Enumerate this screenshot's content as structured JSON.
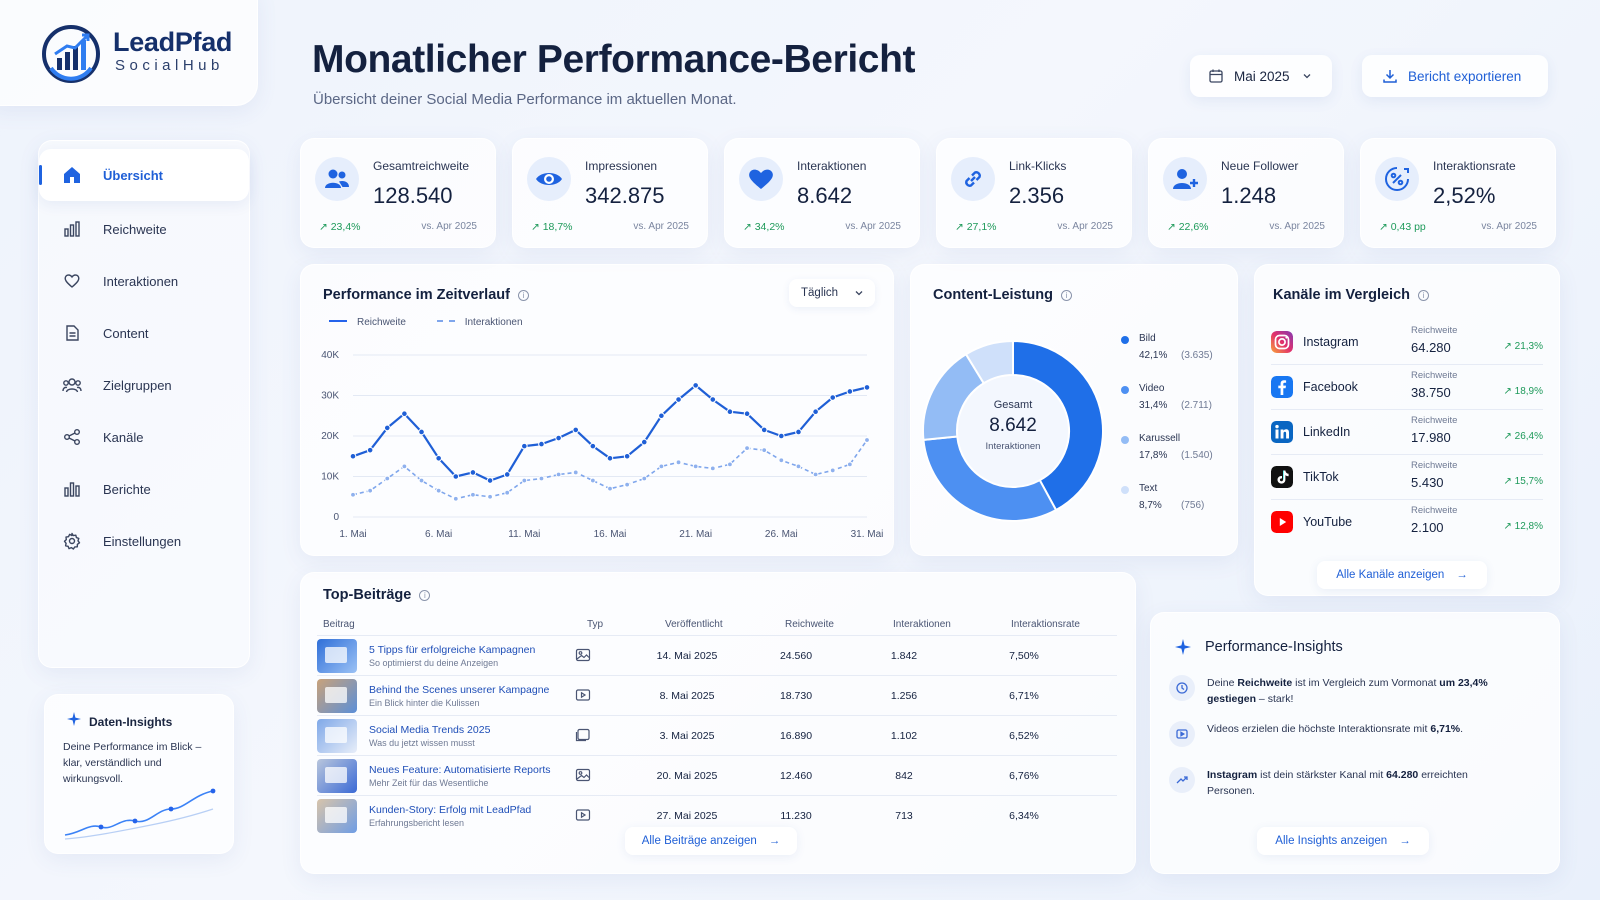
{
  "brand": {
    "name": "LeadPfad",
    "sub": "SocialHub"
  },
  "nav": [
    {
      "label": "Übersicht",
      "icon": "home-icon",
      "active": true
    },
    {
      "label": "Reichweite",
      "icon": "bar-chart-icon"
    },
    {
      "label": "Interaktionen",
      "icon": "heart-icon"
    },
    {
      "label": "Content",
      "icon": "document-icon"
    },
    {
      "label": "Zielgruppen",
      "icon": "users-icon"
    },
    {
      "label": "Kanäle",
      "icon": "share-icon"
    },
    {
      "label": "Berichte",
      "icon": "report-icon"
    },
    {
      "label": "Einstellungen",
      "icon": "gear-icon"
    }
  ],
  "data_insights": {
    "title": "Daten-Insights",
    "text": "Deine Performance im Blick – klar, verständlich und wirkungsvoll."
  },
  "header": {
    "title": "Monatlicher Performance-Bericht",
    "subtitle": "Übersicht deiner Social Media Performance im aktuellen Monat.",
    "month": "Mai 2025",
    "export": "Bericht exportieren"
  },
  "kpis": [
    {
      "label": "Gesamtreichweite",
      "value": "128.540",
      "change": "23,4%",
      "vs": "vs. Apr 2025",
      "icon": "users-icon"
    },
    {
      "label": "Impressionen",
      "value": "342.875",
      "change": "18,7%",
      "vs": "vs. Apr 2025",
      "icon": "eye-icon"
    },
    {
      "label": "Interaktionen",
      "value": "8.642",
      "change": "34,2%",
      "vs": "vs. Apr 2025",
      "icon": "heart-icon"
    },
    {
      "label": "Link-Klicks",
      "value": "2.356",
      "change": "27,1%",
      "vs": "vs. Apr 2025",
      "icon": "link-icon"
    },
    {
      "label": "Neue Follower",
      "value": "1.248",
      "change": "22,6%",
      "vs": "vs. Apr 2025",
      "icon": "user-plus-icon"
    },
    {
      "label": "Interaktionsrate",
      "value": "2,52%",
      "change": "0,43 pp",
      "vs": "vs. Apr 2025",
      "icon": "percent-icon"
    }
  ],
  "performance": {
    "title": "Performance im Zeitverlauf",
    "interval": "Täglich"
  },
  "chart_data": [
    {
      "type": "line",
      "title": "Performance im Zeitverlauf",
      "x": [
        1,
        2,
        3,
        4,
        5,
        6,
        7,
        8,
        9,
        10,
        11,
        12,
        13,
        14,
        15,
        16,
        17,
        18,
        19,
        20,
        21,
        22,
        23,
        24,
        25,
        26,
        27,
        28,
        29,
        30,
        31
      ],
      "xticks": [
        "1. Mai",
        "6. Mai",
        "11. Mai",
        "16. Mai",
        "21. Mai",
        "26. Mai",
        "31. Mai"
      ],
      "yticks": [
        "0",
        "10K",
        "20K",
        "30K",
        "40K"
      ],
      "ylim": [
        0,
        40000
      ],
      "series": [
        {
          "name": "Reichweite",
          "values": [
            15000,
            16500,
            22000,
            25500,
            21000,
            14500,
            10000,
            11000,
            9000,
            10500,
            17500,
            18000,
            19500,
            21500,
            17500,
            14500,
            15000,
            18500,
            25000,
            29000,
            32500,
            29000,
            26000,
            25500,
            21500,
            20000,
            21000,
            26000,
            29500,
            31000,
            32000
          ]
        },
        {
          "name": "Interaktionen",
          "values": [
            5500,
            6500,
            9500,
            12500,
            9000,
            6500,
            4500,
            5500,
            5000,
            6000,
            9000,
            9500,
            10500,
            11000,
            9000,
            7000,
            8000,
            9500,
            12500,
            13500,
            12500,
            12000,
            13000,
            17000,
            16500,
            14000,
            12500,
            10500,
            11500,
            13000,
            19000
          ]
        }
      ],
      "legend": "top-left"
    },
    {
      "type": "pie",
      "title": "Content-Leistung",
      "center_label": "Gesamt",
      "center_value": "8.642",
      "center_sub": "Interaktionen",
      "slices": [
        {
          "label": "Bild",
          "pct": "42,1%",
          "count": "(3.635)",
          "value": 3635,
          "color": "#1f6fe8"
        },
        {
          "label": "Video",
          "pct": "31,4%",
          "count": "(2.711)",
          "value": 2711,
          "color": "#4d90f2"
        },
        {
          "label": "Karussell",
          "pct": "17,8%",
          "count": "(1.540)",
          "value": 1540,
          "color": "#93bcf5"
        },
        {
          "label": "Text",
          "pct": "8,7%",
          "count": "(756)",
          "value": 756,
          "color": "#cfe0fa"
        }
      ]
    }
  ],
  "channels": {
    "title": "Kanäle im Vergleich",
    "metric_label": "Reichweite",
    "items": [
      {
        "name": "Instagram",
        "value": "64.280",
        "change": "21,3%"
      },
      {
        "name": "Facebook",
        "value": "38.750",
        "change": "18,9%"
      },
      {
        "name": "LinkedIn",
        "value": "17.980",
        "change": "26,4%"
      },
      {
        "name": "TikTok",
        "value": "5.430",
        "change": "15,7%"
      },
      {
        "name": "YouTube",
        "value": "2.100",
        "change": "12,8%"
      }
    ],
    "all": "Alle Kanäle anzeigen"
  },
  "top_posts": {
    "title": "Top-Beiträge",
    "headers": [
      "Beitrag",
      "Typ",
      "Veröffentlicht",
      "Reichweite",
      "Interaktionen",
      "Interaktionsrate"
    ],
    "rows": [
      {
        "title": "5 Tipps für erfolgreiche Kampagnen",
        "sub": "So optimierst du deine Anzeigen",
        "type": "image-icon",
        "date": "14. Mai 2025",
        "reach": "24.560",
        "inter": "1.842",
        "rate": "7,50%"
      },
      {
        "title": "Behind the Scenes unserer Kampagne",
        "sub": "Ein Blick hinter die Kulissen",
        "type": "video-icon",
        "date": "8. Mai 2025",
        "reach": "18.730",
        "inter": "1.256",
        "rate": "6,71%"
      },
      {
        "title": "Social Media Trends 2025",
        "sub": "Was du jetzt wissen musst",
        "type": "carousel-icon",
        "date": "3. Mai 2025",
        "reach": "16.890",
        "inter": "1.102",
        "rate": "6,52%"
      },
      {
        "title": "Neues Feature: Automatisierte Reports",
        "sub": "Mehr Zeit für das Wesentliche",
        "type": "image-icon",
        "date": "20. Mai 2025",
        "reach": "12.460",
        "inter": "842",
        "rate": "6,76%"
      },
      {
        "title": "Kunden-Story: Erfolg mit LeadPfad",
        "sub": "Erfahrungsbericht lesen",
        "type": "video-icon",
        "date": "27. Mai 2025",
        "reach": "11.230",
        "inter": "713",
        "rate": "6,34%"
      }
    ],
    "all": "Alle Beiträge anzeigen"
  },
  "insights": {
    "title": "Performance-Insights",
    "items": [
      {
        "pre": "Deine ",
        "bold": "Reichweite",
        "mid": " ist im Vergleich zum Vormonat ",
        "bold2": "um 23,4% gestiegen",
        "post": " – stark!"
      },
      {
        "pre": "Videos erzielen die höchste Interaktionsrate mit ",
        "bold": "6,71%",
        "mid": ".",
        "bold2": "",
        "post": ""
      },
      {
        "pre": "",
        "bold": "Instagram",
        "mid": " ist dein stärkster Kanal mit ",
        "bold2": "64.280",
        "post": " erreichten Personen."
      }
    ],
    "all": "Alle Insights anzeigen"
  },
  "colors": {
    "accent": "#1f63e0",
    "positive": "#1e9a5a"
  }
}
